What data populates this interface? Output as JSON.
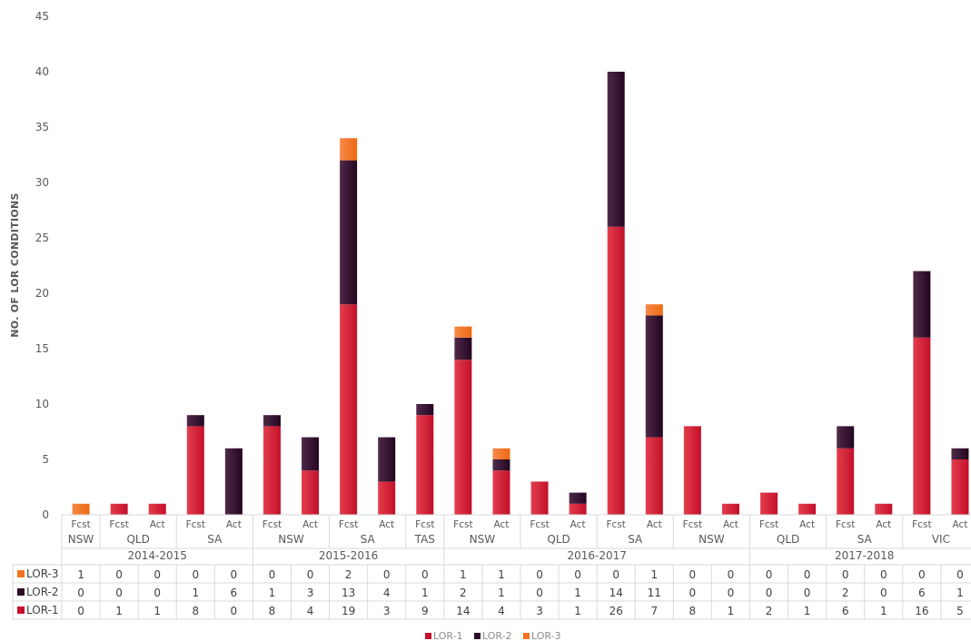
{
  "chart_data": {
    "type": "bar",
    "stacked": true,
    "ylabel": "NO. OF LOR CONDITIONS",
    "ylim": [
      0,
      45
    ],
    "yticks": [
      0,
      5,
      10,
      15,
      20,
      25,
      30,
      35,
      40,
      45
    ],
    "grid": false,
    "legend_position": "bottom",
    "categories": [
      "Fcst",
      "Fcst",
      "Act",
      "Fcst",
      "Act",
      "Fcst",
      "Act",
      "Fcst",
      "Act",
      "Fcst",
      "Fcst",
      "Act",
      "Fcst",
      "Act",
      "Fcst",
      "Act",
      "Fcst",
      "Act",
      "Fcst",
      "Act",
      "Fcst",
      "Act",
      "Fcst",
      "Act"
    ],
    "regions": [
      {
        "label": "NSW",
        "span": 1
      },
      {
        "label": "QLD",
        "span": 2
      },
      {
        "label": "SA",
        "span": 2
      },
      {
        "label": "NSW",
        "span": 2
      },
      {
        "label": "SA",
        "span": 2
      },
      {
        "label": "TAS",
        "span": 1
      },
      {
        "label": "NSW",
        "span": 2
      },
      {
        "label": "QLD",
        "span": 2
      },
      {
        "label": "SA",
        "span": 2
      },
      {
        "label": "NSW",
        "span": 2
      },
      {
        "label": "QLD",
        "span": 2
      },
      {
        "label": "SA",
        "span": 2
      },
      {
        "label": "VIC",
        "span": 2
      }
    ],
    "years": [
      {
        "label": "2014-2015",
        "span": 5
      },
      {
        "label": "2015-2016",
        "span": 5
      },
      {
        "label": "2016-2017",
        "span": 8
      },
      {
        "label": "2017-2018",
        "span": 6
      }
    ],
    "series": [
      {
        "name": "LOR-3",
        "color": "#f47521",
        "values": [
          1,
          0,
          0,
          0,
          0,
          0,
          0,
          2,
          0,
          0,
          1,
          1,
          0,
          0,
          0,
          1,
          0,
          0,
          0,
          0,
          0,
          0,
          0,
          0
        ]
      },
      {
        "name": "LOR-2",
        "color": "#2d0a2a",
        "values": [
          0,
          0,
          0,
          1,
          6,
          1,
          3,
          13,
          4,
          1,
          2,
          1,
          0,
          1,
          14,
          11,
          0,
          0,
          0,
          0,
          2,
          0,
          6,
          1
        ]
      },
      {
        "name": "LOR-1",
        "color": "#c8102e",
        "values": [
          0,
          1,
          1,
          8,
          0,
          8,
          4,
          19,
          3,
          9,
          14,
          4,
          3,
          1,
          26,
          7,
          8,
          1,
          2,
          1,
          6,
          1,
          16,
          5
        ]
      }
    ],
    "legend": [
      "LOR-1",
      "LOR-2",
      "LOR-3"
    ]
  }
}
